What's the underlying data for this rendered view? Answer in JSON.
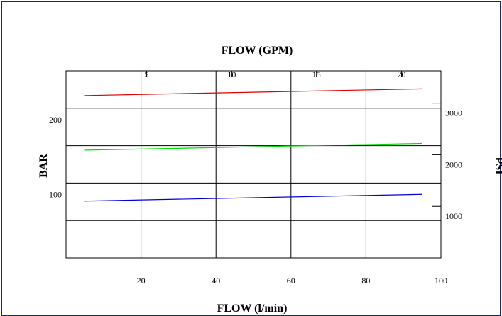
{
  "chart_data": {
    "type": "line",
    "title_top": "FLOW (GPM)",
    "xlabel": "FLOW (l/min)",
    "ylabel_left": "BAR",
    "ylabel_right": "PSI",
    "x_range": [
      0,
      100
    ],
    "y_range_bar": [
      0,
      250
    ],
    "x_ticks_bottom": [
      "20",
      "40",
      "60",
      "80",
      "100"
    ],
    "x_ticks_bottom_values": [
      20,
      40,
      60,
      80,
      100
    ],
    "x_ticks_top": [
      "5",
      "10",
      "15",
      "20"
    ],
    "x_ticks_top_values_lpm": [
      21.5,
      44.2,
      66.8,
      89.5
    ],
    "y_ticks_left": [
      "200",
      "100"
    ],
    "y_ticks_left_values": [
      200,
      100
    ],
    "y_ticks_right": [
      "3000",
      "2000",
      "1000"
    ],
    "y_ticks_right_values_bar": [
      206.8,
      137.9,
      68.9
    ],
    "grid": true,
    "series": [
      {
        "color": "#dd0000",
        "x": [
          5,
          95
        ],
        "y": [
          217,
          226
        ]
      },
      {
        "color": "#00dd00",
        "x": [
          5,
          95
        ],
        "y": [
          144,
          153
        ]
      },
      {
        "color": "#0000dd",
        "x": [
          5,
          95
        ],
        "y": [
          76,
          85
        ]
      }
    ]
  }
}
